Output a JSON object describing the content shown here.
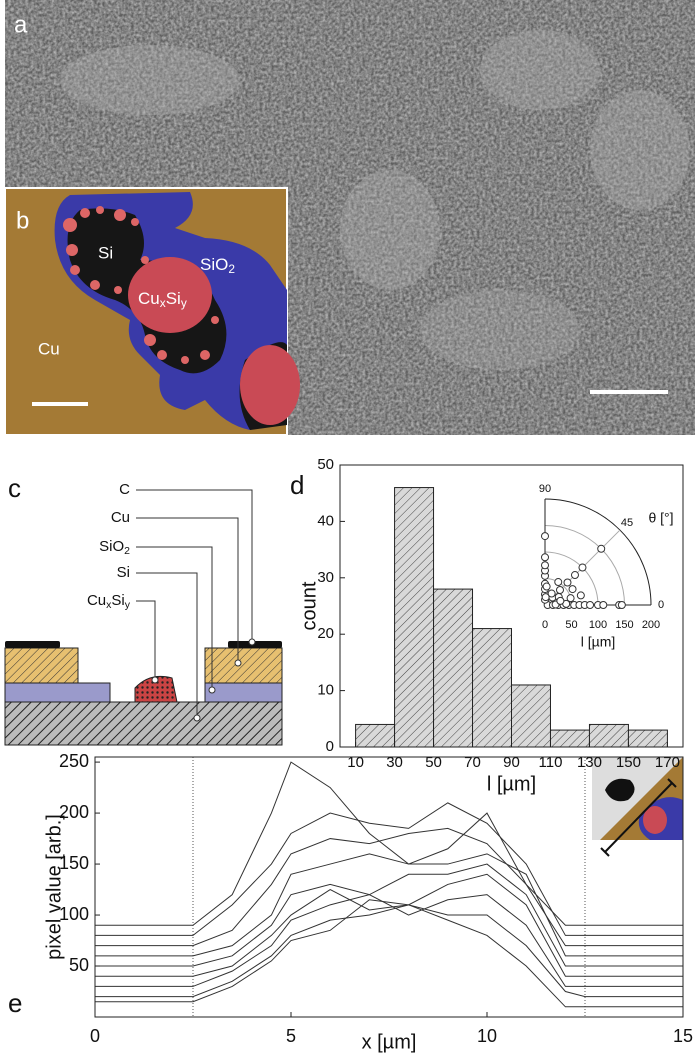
{
  "panels": {
    "a": {
      "label": "a"
    },
    "b": {
      "label": "b",
      "si": "Si",
      "sio2": [
        {
          "text": "SiO"
        },
        {
          "sub": "2"
        }
      ],
      "cu": "Cu",
      "cuxsiy": [
        {
          "text": "Cu"
        },
        {
          "sub": "x"
        },
        {
          "text": "Si"
        },
        {
          "sub": "y"
        }
      ]
    },
    "c": {
      "label": "c",
      "layers": [
        [
          {
            "text": "C"
          }
        ],
        [
          {
            "text": "Cu"
          }
        ],
        [
          {
            "text": "SiO"
          },
          {
            "sub": "2"
          }
        ],
        [
          {
            "text": "Si"
          }
        ],
        [
          {
            "text": "Cu"
          },
          {
            "sub": "x"
          },
          {
            "text": "Si"
          },
          {
            "sub": "y"
          }
        ]
      ]
    },
    "d": {
      "label": "d"
    },
    "e": {
      "label": "e"
    }
  },
  "chart_data": [
    {
      "type": "histogram",
      "xlabel": "l [µm]",
      "ylabel": "count",
      "bins": [
        10,
        30,
        50,
        70,
        90,
        110,
        130,
        150,
        170
      ],
      "counts": [
        4,
        46,
        28,
        21,
        11,
        3,
        4,
        3
      ],
      "color": "#d9d9d9",
      "xlim": [
        2,
        178
      ],
      "ylim": [
        0,
        50
      ],
      "xticks": [
        10,
        30,
        50,
        70,
        90,
        110,
        130,
        150,
        170
      ],
      "yticks": [
        0,
        10,
        20,
        30,
        40,
        50
      ]
    },
    {
      "type": "polar-scatter",
      "theta_label": "θ [°]",
      "r_label": "l [µm]",
      "theta": [
        0,
        0,
        0,
        0,
        0,
        0,
        0,
        0,
        0,
        0,
        0,
        0,
        0,
        3,
        3,
        90,
        90,
        90,
        90,
        90,
        90,
        90,
        90,
        90,
        85,
        85,
        45,
        45,
        45,
        45,
        45,
        45,
        30,
        30,
        60,
        60,
        15,
        15,
        15
      ],
      "l": [
        5,
        15,
        25,
        35,
        45,
        55,
        65,
        75,
        85,
        100,
        110,
        140,
        145,
        20,
        40,
        10,
        20,
        30,
        40,
        55,
        65,
        75,
        90,
        130,
        15,
        35,
        20,
        40,
        60,
        80,
        100,
        150,
        30,
        60,
        25,
        50,
        30,
        50,
        70
      ],
      "rlim": [
        0,
        200
      ],
      "rticks": [
        0,
        50,
        100,
        150,
        200
      ],
      "thetaticks": [
        0,
        45,
        90
      ]
    },
    {
      "type": "line",
      "xlabel": "x [µm]",
      "ylabel": "pixel value [arb.]",
      "x": [
        0,
        2.5,
        3.5,
        4.5,
        5,
        6,
        7,
        8,
        9,
        10,
        11,
        12,
        12.5,
        15
      ],
      "series": [
        {
          "color": "#333333",
          "values": [
            90,
            90,
            120,
            200,
            250,
            225,
            180,
            150,
            165,
            200,
            130,
            90,
            90,
            90
          ]
        },
        {
          "color": "#333333",
          "values": [
            80,
            80,
            110,
            150,
            180,
            200,
            190,
            185,
            210,
            190,
            150,
            80,
            80,
            80
          ]
        },
        {
          "color": "#333333",
          "values": [
            70,
            70,
            85,
            130,
            160,
            175,
            170,
            180,
            185,
            170,
            130,
            70,
            70,
            70
          ]
        },
        {
          "color": "#333333",
          "values": [
            60,
            60,
            70,
            100,
            140,
            150,
            160,
            150,
            150,
            160,
            140,
            60,
            60,
            60
          ]
        },
        {
          "color": "#333333",
          "values": [
            50,
            50,
            60,
            90,
            120,
            130,
            120,
            140,
            140,
            150,
            120,
            50,
            50,
            50
          ]
        },
        {
          "color": "#333333",
          "values": [
            40,
            40,
            50,
            80,
            100,
            125,
            105,
            110,
            130,
            140,
            110,
            40,
            40,
            40
          ]
        },
        {
          "color": "#333333",
          "values": [
            30,
            30,
            45,
            70,
            95,
            110,
            120,
            100,
            115,
            120,
            90,
            30,
            30,
            30
          ]
        },
        {
          "color": "#333333",
          "values": [
            20,
            20,
            35,
            60,
            80,
            95,
            100,
            110,
            100,
            100,
            70,
            25,
            20,
            20
          ]
        },
        {
          "color": "#333333",
          "values": [
            15,
            15,
            30,
            55,
            75,
            85,
            115,
            110,
            95,
            80,
            50,
            10,
            10,
            10
          ]
        }
      ],
      "markers_x": [
        2.5,
        12.5
      ],
      "xlim": [
        0,
        15
      ],
      "ylim": [
        0,
        255
      ],
      "xticks": [
        0,
        5,
        10,
        15
      ],
      "yticks": [
        50,
        100,
        150,
        200,
        250
      ]
    }
  ]
}
